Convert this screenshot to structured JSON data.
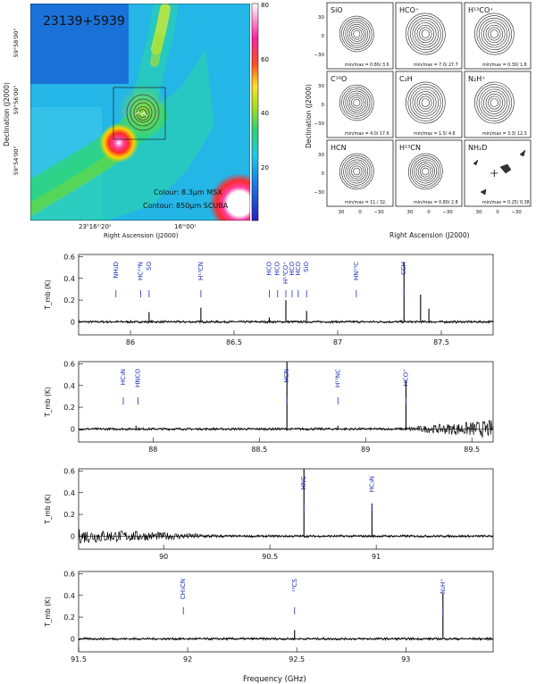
{
  "chart_data": [
    {
      "type": "heatmap",
      "title": "23139+5939",
      "xlabel": "Right Ascension (J2000)",
      "ylabel": "Declination (J2000)",
      "x_ticks": [
        "23ʰ16ᵐ20ˢ",
        "16ᵐ00ˢ"
      ],
      "y_ticks": [
        "59°58'00\"",
        "59°56'00\"",
        "59°54'00\""
      ],
      "colorbar": {
        "min": 0,
        "max": 80,
        "ticks": [
          20,
          40,
          60,
          80
        ]
      },
      "annotations": [
        "Colour: 8.3μm MSX",
        "Contour: 850μm SCUBA"
      ]
    },
    {
      "type": "contour_grid",
      "xlabel": "Right Ascension (J2000)",
      "ylabel": "Declination (J2000)",
      "x_ticks": [
        "30",
        "0",
        "−30"
      ],
      "y_ticks": [
        "30",
        "0",
        "−30"
      ],
      "panels": [
        {
          "name": "SiO",
          "minmax": "min/max = 0.80/ 3.6"
        },
        {
          "name": "HCO⁺",
          "minmax": "min/max = 7.0/ 27.7"
        },
        {
          "name": "H¹³CO⁺",
          "minmax": "min/max = 0.30/ 1.8"
        },
        {
          "name": "C¹⁸O",
          "minmax": "min/max = 4.0/ 17.6"
        },
        {
          "name": "C₂H",
          "minmax": "min/max = 1.5/ 4.6"
        },
        {
          "name": "N₂H⁺",
          "minmax": "min/max = 3.3/ 12.3"
        },
        {
          "name": "HCN",
          "minmax": "min/max = 11./ 32."
        },
        {
          "name": "H¹³CN",
          "minmax": "min/max = 0.80/ 2.8"
        },
        {
          "name": "NH₂D",
          "minmax": "min/max = 0.25/ 0.38"
        }
      ]
    },
    {
      "type": "line",
      "xlabel": "Frequency (GHz)",
      "ylabel": "T_mb (K)",
      "panels": [
        {
          "xlim": [
            85.75,
            87.75
          ],
          "ylim": [
            -0.12,
            0.62
          ],
          "x_ticks": [
            86,
            86.5,
            87,
            87.5
          ],
          "y_ticks": [
            0,
            0.2,
            0.4,
            0.6
          ],
          "peaks": [
            [
              86.09,
              0.09
            ],
            [
              86.34,
              0.13
            ],
            [
              86.67,
              0.04
            ],
            [
              86.75,
              0.2
            ],
            [
              86.85,
              0.1
            ],
            [
              87.32,
              0.55
            ],
            [
              87.4,
              0.25
            ],
            [
              87.44,
              0.12
            ]
          ],
          "lines": [
            {
              "label": "NH₂D",
              "freq": 85.93
            },
            {
              "label": "HC¹⁵N",
              "freq": 86.05
            },
            {
              "label": "SO",
              "freq": 86.09
            },
            {
              "label": "H¹³CN",
              "freq": 86.34
            },
            {
              "label": "HCO",
              "freq": 86.67
            },
            {
              "label": "HCO",
              "freq": 86.71
            },
            {
              "label": "H¹³CO⁺",
              "freq": 86.75
            },
            {
              "label": "HCO",
              "freq": 86.78
            },
            {
              "label": "HCO",
              "freq": 86.81
            },
            {
              "label": "SiO",
              "freq": 86.85
            },
            {
              "label": "HN¹³C",
              "freq": 87.09
            },
            {
              "label": "CCH",
              "freq": 87.32
            }
          ]
        },
        {
          "xlim": [
            87.65,
            89.6
          ],
          "ylim": [
            -0.12,
            0.62
          ],
          "x_ticks": [
            88,
            88.5,
            89,
            89.5
          ],
          "y_ticks": [
            0,
            0.2,
            0.4,
            0.6
          ],
          "peaks": [
            [
              88.63,
              0.62
            ],
            [
              89.19,
              0.45
            ],
            [
              88.87,
              0.03
            ],
            [
              87.92,
              0.03
            ]
          ],
          "lines": [
            {
              "label": "HC₃N",
              "freq": 87.86
            },
            {
              "label": "HNCO",
              "freq": 87.93
            },
            {
              "label": "HCN",
              "freq": 88.63
            },
            {
              "label": "H¹⁵NC",
              "freq": 88.87
            },
            {
              "label": "HCO⁺",
              "freq": 89.19
            }
          ]
        },
        {
          "xlim": [
            89.6,
            91.55
          ],
          "ylim": [
            -0.12,
            0.62
          ],
          "x_ticks": [
            90,
            90.5,
            91
          ],
          "y_ticks": [
            0,
            0.2,
            0.4,
            0.6
          ],
          "peaks": [
            [
              90.66,
              0.62
            ],
            [
              90.98,
              0.3
            ]
          ],
          "lines": [
            {
              "label": "HNC",
              "freq": 90.66
            },
            {
              "label": "HC₃N",
              "freq": 90.98
            }
          ]
        },
        {
          "xlim": [
            91.5,
            93.4
          ],
          "ylim": [
            -0.12,
            0.62
          ],
          "x_ticks": [
            91.5,
            92,
            92.5,
            93
          ],
          "y_ticks": [
            0,
            0.2,
            0.4,
            0.6
          ],
          "peaks": [
            [
              92.49,
              0.08
            ],
            [
              93.17,
              0.42
            ]
          ],
          "lines": [
            {
              "label": "CH₃CN",
              "freq": 91.98
            },
            {
              "label": "¹³CS",
              "freq": 92.49
            },
            {
              "label": "N₂H⁺",
              "freq": 93.17
            }
          ]
        }
      ]
    }
  ],
  "colors": {
    "spectrum": "#000000",
    "line_label": "#1f2dbf"
  }
}
